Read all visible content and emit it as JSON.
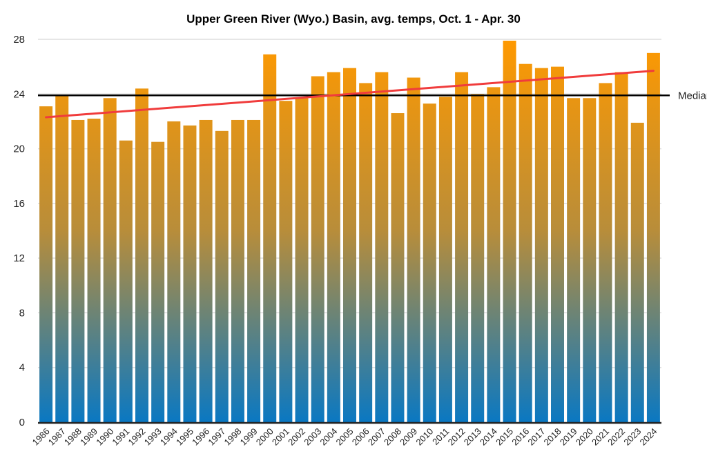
{
  "chart_data": {
    "type": "bar",
    "title": "Upper Green River (Wyo.) Basin, avg. temps, Oct. 1 - Apr. 30",
    "xlabel": "",
    "ylabel": "",
    "ylim": [
      0,
      28
    ],
    "yticks": [
      0,
      4,
      8,
      12,
      16,
      20,
      24,
      28
    ],
    "grid": true,
    "categories": [
      "1986",
      "1987",
      "1988",
      "1989",
      "1990",
      "1991",
      "1992",
      "1993",
      "1994",
      "1995",
      "1996",
      "1997",
      "1998",
      "1999",
      "2000",
      "2001",
      "2002",
      "2003",
      "2004",
      "2005",
      "2006",
      "2007",
      "2008",
      "2009",
      "2010",
      "2011",
      "2012",
      "2013",
      "2014",
      "2015",
      "2016",
      "2017",
      "2018",
      "2019",
      "2020",
      "2021",
      "2022",
      "2023",
      "2024"
    ],
    "values": [
      23.1,
      23.9,
      22.1,
      22.2,
      23.7,
      20.6,
      24.4,
      20.5,
      22.0,
      21.7,
      22.1,
      21.3,
      22.1,
      22.1,
      26.9,
      23.5,
      23.7,
      25.3,
      25.6,
      25.9,
      24.8,
      25.6,
      22.6,
      25.2,
      23.3,
      23.8,
      25.6,
      24.0,
      24.5,
      27.9,
      26.2,
      25.9,
      26.0,
      23.7,
      23.7,
      24.8,
      25.6,
      21.9,
      27.0
    ],
    "median": {
      "label": "Median",
      "value": 23.9
    },
    "trendline": {
      "start": 22.3,
      "end": 25.7
    },
    "colors": {
      "bar_top": "#ff9900",
      "bar_mid": "#b88d3a",
      "bar_bottom": "#0a78c2",
      "median": "#000000",
      "trend": "#f03c3c",
      "grid": "#dddddd"
    }
  }
}
